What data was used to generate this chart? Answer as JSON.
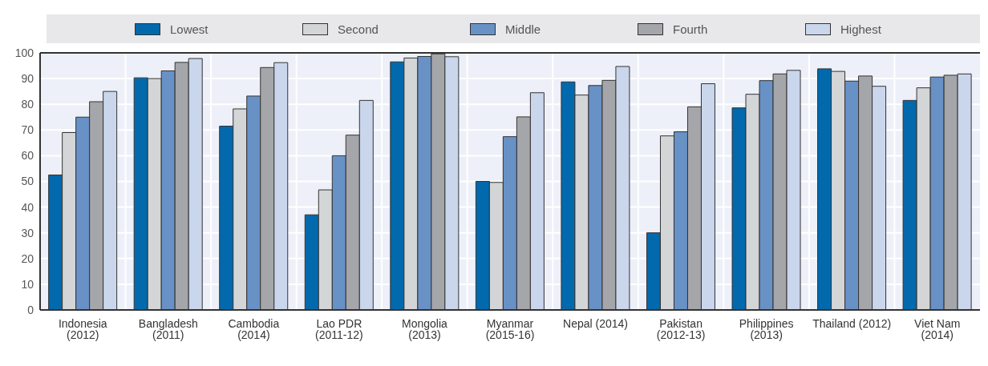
{
  "chart_data": {
    "type": "bar",
    "categories": [
      "Indonesia (2012)",
      "Bangladesh (2011)",
      "Cambodia (2014)",
      "Lao PDR (2011-12)",
      "Mongolia (2013)",
      "Myanmar (2015-16)",
      "Nepal (2014)",
      "Pakistan (2012-13)",
      "Philippines (2013)",
      "Thailand (2012)",
      "Viet Nam (2014)"
    ],
    "series": [
      {
        "name": "Lowest",
        "color": "#0369ad",
        "values": [
          52.5,
          90.3,
          71.5,
          37,
          96.5,
          50,
          88.7,
          30,
          78.6,
          93.8,
          81.5
        ]
      },
      {
        "name": "Second",
        "color": "#d4d5d7",
        "values": [
          69,
          90,
          78.2,
          46.7,
          98,
          49.6,
          83.6,
          67.7,
          83.9,
          92.8,
          86.4
        ]
      },
      {
        "name": "Middle",
        "color": "#6891c6",
        "values": [
          75,
          93,
          83.2,
          60,
          98.6,
          67.4,
          87.3,
          69.3,
          89.2,
          89,
          90.6
        ]
      },
      {
        "name": "Fourth",
        "color": "#a5a6aa",
        "values": [
          81,
          96.3,
          94.3,
          68,
          99.6,
          75.1,
          89.3,
          79,
          91.8,
          91,
          91.3
        ]
      },
      {
        "name": "Highest",
        "color": "#cad6eb",
        "values": [
          85,
          97.8,
          96.2,
          81.5,
          98.5,
          84.5,
          94.7,
          88,
          93.2,
          87,
          91.8
        ]
      }
    ],
    "ylim": [
      0,
      100
    ],
    "yticks": [
      0,
      10,
      20,
      30,
      40,
      50,
      60,
      70,
      80,
      90,
      100
    ],
    "grid": true,
    "legend": "top"
  }
}
